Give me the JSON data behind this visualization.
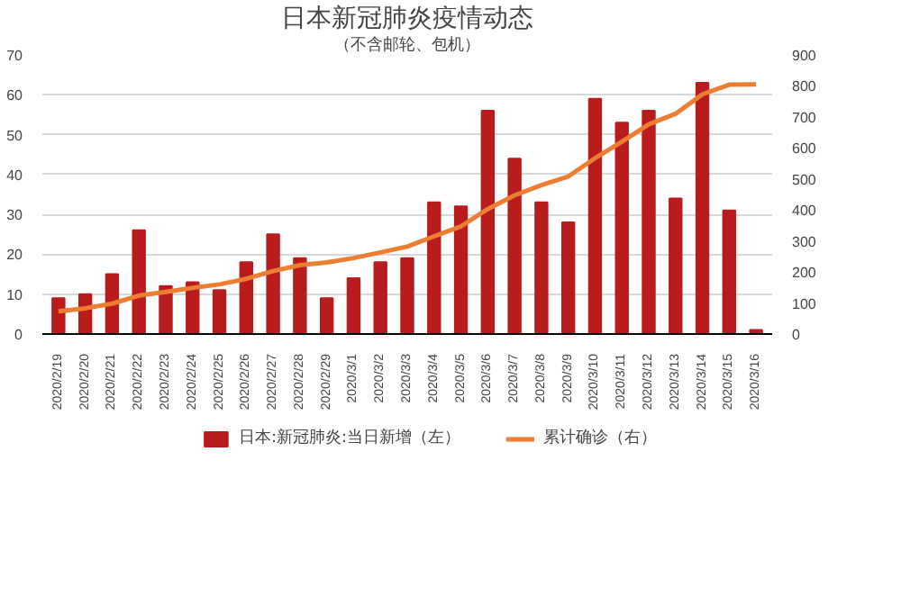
{
  "chart_data": {
    "type": "bar",
    "title": "日本新冠肺炎疫情动态",
    "subtitle": "（不含邮轮、包机）",
    "categories": [
      "2020/2/19",
      "2020/2/20",
      "2020/2/21",
      "2020/2/22",
      "2020/2/23",
      "2020/2/24",
      "2020/2/25",
      "2020/2/26",
      "2020/2/27",
      "2020/2/28",
      "2020/2/29",
      "2020/3/1",
      "2020/3/2",
      "2020/3/3",
      "2020/3/4",
      "2020/3/5",
      "2020/3/6",
      "2020/3/7",
      "2020/3/8",
      "2020/3/9",
      "2020/3/10",
      "2020/3/11",
      "2020/3/12",
      "2020/3/13",
      "2020/3/14",
      "2020/3/15",
      "2020/3/16"
    ],
    "series": [
      {
        "name": "日本:新冠肺炎:当日新增（左）",
        "color": "#b81c1c",
        "values": [
          9,
          10,
          15,
          26,
          12,
          13,
          11,
          18,
          25,
          19,
          9,
          14,
          18,
          19,
          33,
          32,
          56,
          44,
          33,
          28,
          59,
          53,
          56,
          34,
          63,
          31,
          1
        ]
      },
      {
        "name": "累计确诊（右）",
        "type": "line",
        "axis": "y2",
        "color": "#ed7d31",
        "values": [
          73,
          83,
          98,
          124,
          136,
          149,
          160,
          178,
          203,
          222,
          231,
          245,
          263,
          282,
          315,
          347,
          403,
          447,
          480,
          508,
          567,
          620,
          676,
          710,
          773,
          804,
          805
        ]
      }
    ],
    "ylim": [
      0,
      70
    ],
    "yticks": [
      0,
      10,
      20,
      30,
      40,
      50,
      60,
      70
    ],
    "y2lim": [
      0,
      900
    ],
    "y2ticks": [
      0,
      100,
      200,
      300,
      400,
      500,
      600,
      700,
      800,
      900
    ],
    "grid": "y",
    "legend": "bottom"
  }
}
